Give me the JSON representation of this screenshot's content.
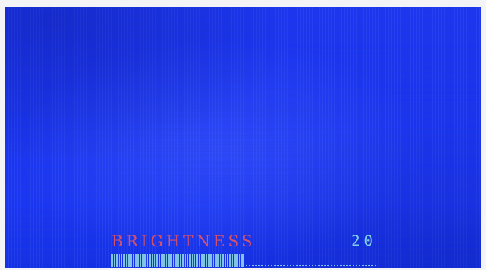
{
  "osd": {
    "label": "BRIGHTNESS",
    "value": "20",
    "level_fraction": 0.5,
    "colors": {
      "background": "#1b36f0",
      "label": "#d8506a",
      "value": "#7fd0e8",
      "bar": "#7fc4e4"
    }
  }
}
